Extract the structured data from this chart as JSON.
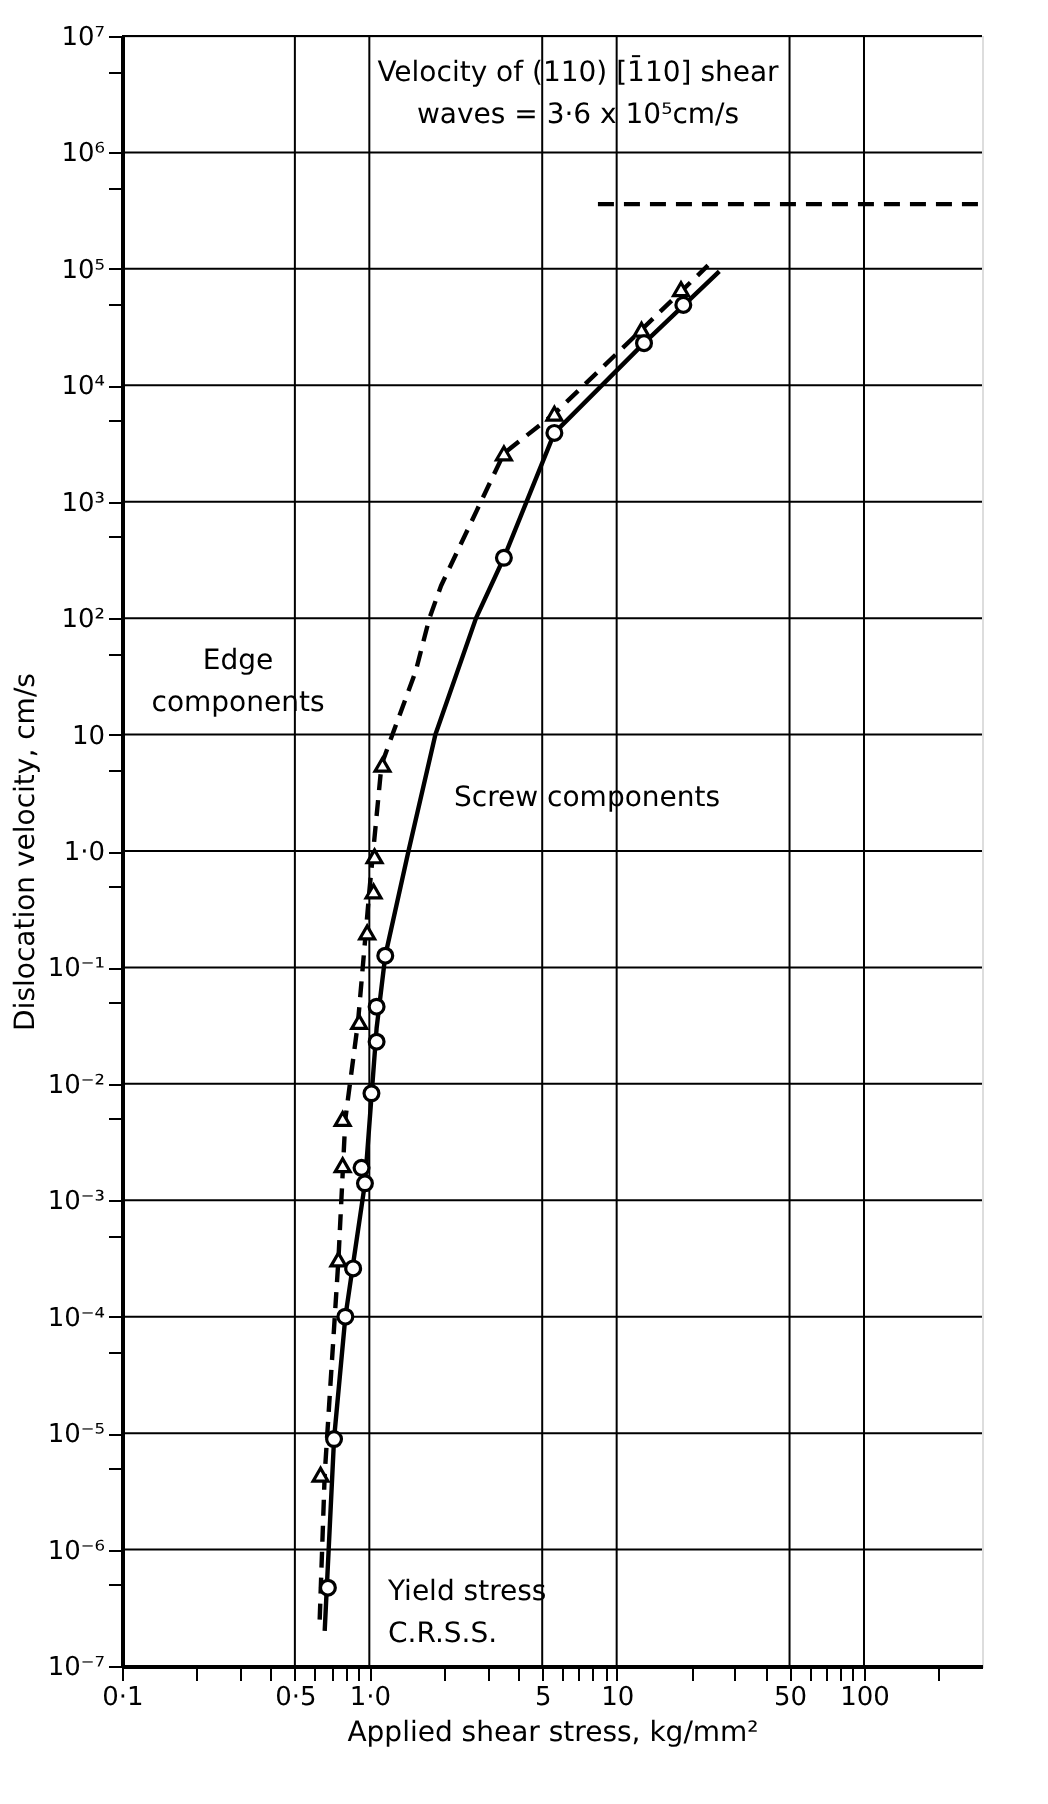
{
  "chart_data": {
    "type": "scatter",
    "xlabel": "Applied shear stress, kg/mm²",
    "ylabel": "Dislocation velocity, cm/s",
    "log": "xy",
    "grid": true,
    "xlim": [
      0.1,
      300
    ],
    "ylim": [
      1e-07,
      10000000.0
    ],
    "xticks": [
      {
        "value": 0.1,
        "label": "0·1"
      },
      {
        "value": 0.2,
        "label": null
      },
      {
        "value": 0.3,
        "label": null
      },
      {
        "value": 0.4,
        "label": null
      },
      {
        "value": 0.5,
        "label": "0·5"
      },
      {
        "value": 0.6,
        "label": null
      },
      {
        "value": 0.7,
        "label": null
      },
      {
        "value": 0.8,
        "label": null
      },
      {
        "value": 0.9,
        "label": null
      },
      {
        "value": 1,
        "label": "1·0"
      },
      {
        "value": 2,
        "label": null
      },
      {
        "value": 3,
        "label": null
      },
      {
        "value": 4,
        "label": null
      },
      5,
      {
        "value": 6,
        "label": null
      },
      {
        "value": 7,
        "label": null
      },
      {
        "value": 8,
        "label": null
      },
      {
        "value": 9,
        "label": null
      },
      10,
      {
        "value": 20,
        "label": null
      },
      {
        "value": 30,
        "label": null
      },
      {
        "value": 40,
        "label": null
      },
      50,
      {
        "value": 60,
        "label": null
      },
      {
        "value": 70,
        "label": null
      },
      {
        "value": 80,
        "label": null
      },
      {
        "value": 90,
        "label": null
      },
      100,
      {
        "value": 200,
        "label": null
      }
    ],
    "yticks": [
      {
        "value": 1e-07,
        "label": "10⁻⁷"
      },
      {
        "value": 5e-07,
        "label": null
      },
      {
        "value": 1e-06,
        "label": "10⁻⁶"
      },
      {
        "value": 5e-06,
        "label": null
      },
      {
        "value": 1e-05,
        "label": "10⁻⁵"
      },
      {
        "value": 5e-05,
        "label": null
      },
      {
        "value": 0.0001,
        "label": "10⁻⁴"
      },
      {
        "value": 0.0005,
        "label": null
      },
      {
        "value": 0.001,
        "label": "10⁻³"
      },
      {
        "value": 0.005,
        "label": null
      },
      {
        "value": 0.01,
        "label": "10⁻²"
      },
      {
        "value": 0.05,
        "label": null
      },
      {
        "value": 0.1,
        "label": "10⁻¹"
      },
      {
        "value": 0.5,
        "label": null
      },
      {
        "value": 1,
        "label": "1·0"
      },
      {
        "value": 5,
        "label": null
      },
      10,
      {
        "value": 50,
        "label": null
      },
      {
        "value": 100,
        "label": "10²"
      },
      {
        "value": 500,
        "label": null
      },
      {
        "value": 1000,
        "label": "10³"
      },
      {
        "value": 5000,
        "label": null
      },
      {
        "value": 10000,
        "label": "10⁴"
      },
      {
        "value": 50000,
        "label": null
      },
      {
        "value": 100000,
        "label": "10⁵"
      },
      {
        "value": 500000,
        "label": null
      },
      {
        "value": 1000000,
        "label": "10⁶"
      },
      {
        "value": 5000000,
        "label": null
      },
      {
        "value": 10000000,
        "label": "10⁷"
      }
    ],
    "series": [
      {
        "marker": "triangle",
        "color": "#000000",
        "x": [
          18.2,
          12.6,
          5.6,
          3.5,
          1.13,
          1.05,
          1.04,
          0.98,
          0.91,
          0.78,
          0.78,
          0.75,
          0.635
        ],
        "values": [
          67000,
          30000,
          5700,
          2600,
          5.5,
          0.9,
          0.45,
          0.2,
          0.034,
          0.005,
          0.002,
          0.00031,
          4.4e-06
        ]
      },
      {
        "marker": "circle",
        "color": "#000000",
        "x": [
          18.6,
          12.9,
          5.6,
          3.5,
          1.16,
          1.07,
          1.07,
          1.02,
          0.93,
          0.96,
          0.86,
          0.8,
          0.72,
          0.68
        ],
        "values": [
          49000,
          23000,
          3900,
          330,
          0.126,
          0.046,
          0.023,
          0.0083,
          0.0019,
          0.0014,
          0.00026,
          0.0001,
          8.9e-06,
          4.7e-07
        ]
      },
      {
        "type": "line",
        "line_style": "dashed",
        "color": "#000000",
        "x": [
          0.63,
          0.66,
          0.75,
          0.8,
          0.9,
          1.0,
          1.12,
          1.24,
          1.54,
          1.75,
          1.95,
          3.5,
          5.6,
          12.6,
          23.4
        ],
        "values": [
          2.5e-07,
          4.4e-06,
          0.00031,
          0.005,
          0.034,
          0.45,
          5.5,
          10,
          35,
          100,
          190,
          2600,
          5700,
          30000,
          107000
        ]
      },
      {
        "type": "line",
        "line_style": "solid",
        "color": "#000000",
        "x": [
          0.66,
          0.72,
          0.8,
          0.96,
          1.07,
          1.16,
          1.44,
          1.85,
          2.7,
          3.5,
          5.6,
          12.9,
          26
        ],
        "values": [
          2e-07,
          8.9e-06,
          0.0001,
          0.0014,
          0.03,
          0.126,
          1,
          10,
          100,
          330,
          3900,
          23000,
          95000
        ]
      },
      {
        "type": "line",
        "line_style": "dashed",
        "color": "#000000",
        "x": [
          8.4,
          300
        ],
        "values": [
          360000,
          360000
        ]
      }
    ],
    "annotations": [
      "Velocity of (110) [1̄10] shear\nwaves = 3·6 x 10⁵cm/s",
      "Edge\ncomponents",
      "Screw components",
      "Yield stress",
      "C.R.S.S."
    ]
  }
}
